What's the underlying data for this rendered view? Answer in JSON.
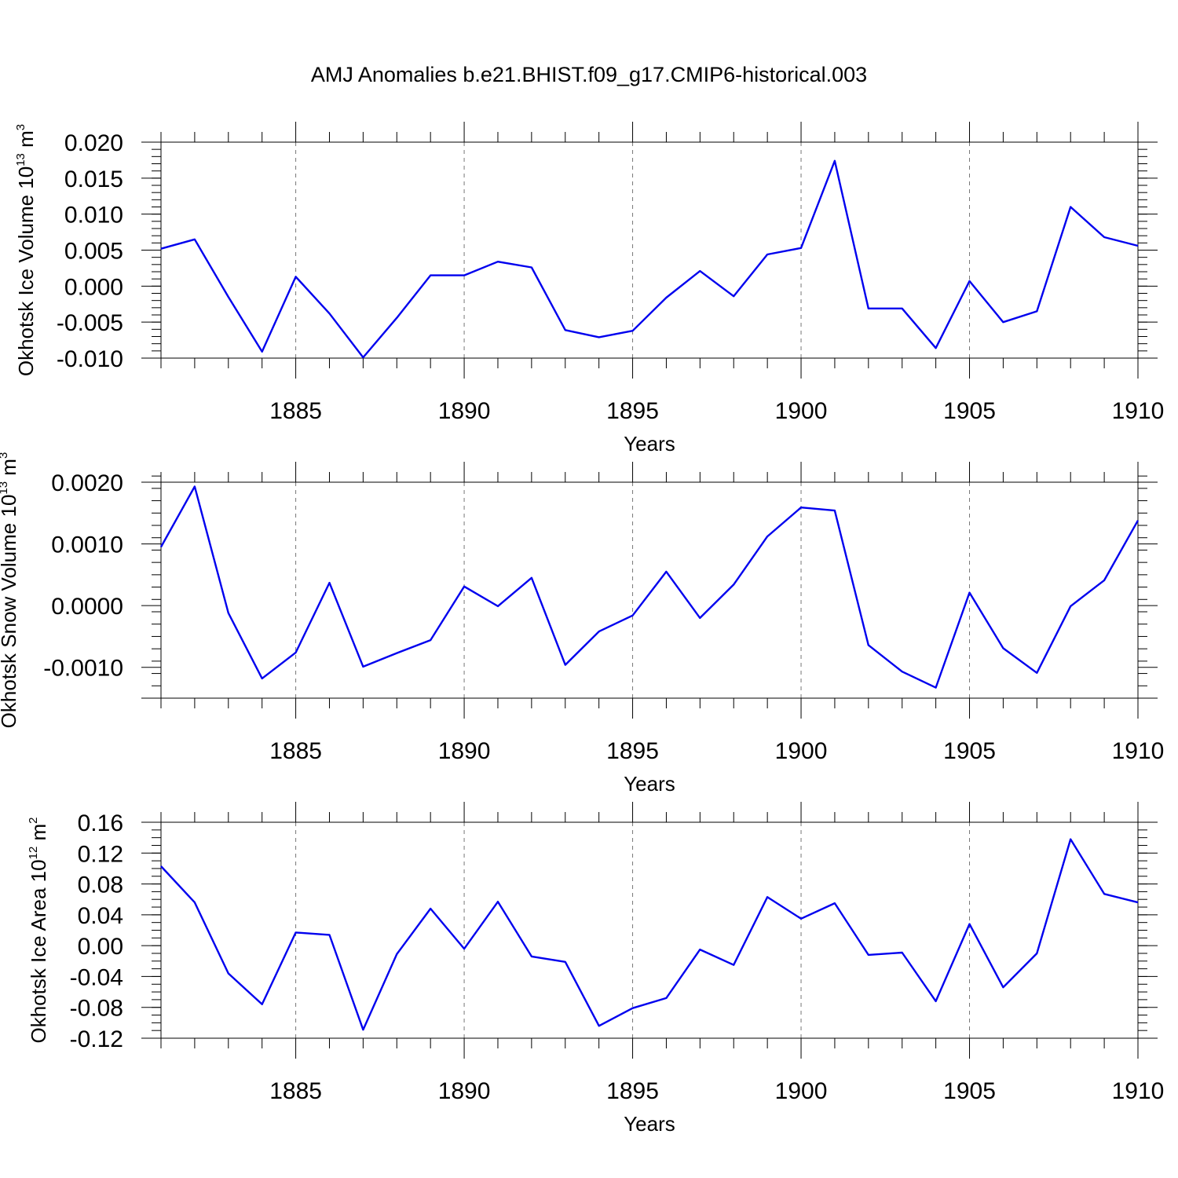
{
  "title": "AMJ Anomalies b.e21.BHIST.f09_g17.CMIP6-historical.003",
  "line_color": "#0000ee",
  "chart_data": [
    {
      "type": "line",
      "title": "AMJ Anomalies b.e21.BHIST.f09_g17.CMIP6-historical.003",
      "xlabel": "Years",
      "ylabel": {
        "text": "Okhotsk Ice Volume 10",
        "exp": "13",
        "unit": " m",
        "unit_exp": "3"
      },
      "xlim": [
        1881,
        1910
      ],
      "ylim": [
        -0.01,
        0.02
      ],
      "grid": "dashed vertical lines at major x ticks",
      "xticks": [
        1885,
        1890,
        1895,
        1900,
        1905,
        1910
      ],
      "xtick_labels": [
        "1885",
        "1890",
        "1895",
        "1900",
        "1905",
        "1910"
      ],
      "yticks": [
        -0.01,
        -0.005,
        0.0,
        0.005,
        0.01,
        0.015,
        0.02
      ],
      "ytick_labels": [
        "-0.010",
        "-0.005",
        "0.000",
        "0.005",
        "0.010",
        "0.015",
        "0.020"
      ],
      "yminor_step": 0.001,
      "series": [
        {
          "name": "Okhotsk Ice Volume",
          "x": [
            1881,
            1882,
            1883,
            1884,
            1885,
            1886,
            1887,
            1888,
            1889,
            1890,
            1891,
            1892,
            1893,
            1894,
            1895,
            1896,
            1897,
            1898,
            1899,
            1900,
            1901,
            1902,
            1903,
            1904,
            1905,
            1906,
            1907,
            1908,
            1909,
            1910
          ],
          "values": [
            0.0052,
            0.0065,
            -0.0015,
            -0.0091,
            0.0013,
            -0.0038,
            -0.0099,
            -0.0044,
            0.0015,
            0.0015,
            0.0034,
            0.0026,
            -0.0061,
            -0.0071,
            -0.0062,
            -0.0016,
            0.0021,
            -0.0014,
            0.0044,
            0.0053,
            0.0174,
            -0.0031,
            -0.0031,
            -0.0086,
            0.0007,
            -0.005,
            -0.0035,
            0.011,
            0.0068,
            0.0056
          ]
        }
      ]
    },
    {
      "type": "line",
      "xlabel": "Years",
      "ylabel": {
        "text": "Okhotsk Snow Volume 10",
        "exp": "13",
        "unit": " m",
        "unit_exp": "3"
      },
      "xlim": [
        1881,
        1910
      ],
      "ylim": [
        -0.0015,
        0.002
      ],
      "grid": "dashed vertical lines at major x ticks",
      "xticks": [
        1885,
        1890,
        1895,
        1900,
        1905,
        1910
      ],
      "xtick_labels": [
        "1885",
        "1890",
        "1895",
        "1900",
        "1905",
        "1910"
      ],
      "yticks": [
        -0.001,
        0.0,
        0.001,
        0.002
      ],
      "ytick_labels": [
        "-0.0010",
        "0.0000",
        "0.0010",
        "0.0020"
      ],
      "yminor_step": 0.0002,
      "series": [
        {
          "name": "Okhotsk Snow Volume",
          "x": [
            1881,
            1882,
            1883,
            1884,
            1885,
            1886,
            1887,
            1888,
            1889,
            1890,
            1891,
            1892,
            1893,
            1894,
            1895,
            1896,
            1897,
            1898,
            1899,
            1900,
            1901,
            1902,
            1903,
            1904,
            1905,
            1906,
            1907,
            1908,
            1909,
            1910
          ],
          "values": [
            0.00095,
            0.00193,
            -0.00012,
            -0.00118,
            -0.00076,
            0.00037,
            -0.00099,
            -0.00077,
            -0.00056,
            0.00031,
            -1e-05,
            0.00045,
            -0.00096,
            -0.00042,
            -0.00016,
            0.00055,
            -0.0002,
            0.00034,
            0.00112,
            0.00159,
            0.00154,
            -0.00064,
            -0.00107,
            -0.00133,
            0.00021,
            -0.00069,
            -0.00109,
            -1e-05,
            0.00041,
            0.00138
          ]
        }
      ]
    },
    {
      "type": "line",
      "xlabel": "Years",
      "ylabel": {
        "text": "Okhotsk Ice Area 10",
        "exp": "12",
        "unit": " m",
        "unit_exp": "2"
      },
      "xlim": [
        1881,
        1910
      ],
      "ylim": [
        -0.12,
        0.16
      ],
      "grid": "dashed vertical lines at major x ticks",
      "xticks": [
        1885,
        1890,
        1895,
        1900,
        1905,
        1910
      ],
      "xtick_labels": [
        "1885",
        "1890",
        "1895",
        "1900",
        "1905",
        "1910"
      ],
      "yticks": [
        -0.12,
        -0.08,
        -0.04,
        0.0,
        0.04,
        0.08,
        0.12,
        0.16
      ],
      "ytick_labels": [
        "-0.12",
        "-0.08",
        "-0.04",
        "0.00",
        "0.04",
        "0.08",
        "0.12",
        "0.16"
      ],
      "yminor_step": 0.01,
      "series": [
        {
          "name": "Okhotsk Ice Area",
          "x": [
            1881,
            1882,
            1883,
            1884,
            1885,
            1886,
            1887,
            1888,
            1889,
            1890,
            1891,
            1892,
            1893,
            1894,
            1895,
            1896,
            1897,
            1898,
            1899,
            1900,
            1901,
            1902,
            1903,
            1904,
            1905,
            1906,
            1907,
            1908,
            1909,
            1910
          ],
          "values": [
            0.103,
            0.056,
            -0.036,
            -0.076,
            0.017,
            0.014,
            -0.109,
            -0.011,
            0.048,
            -0.004,
            0.057,
            -0.014,
            -0.021,
            -0.104,
            -0.081,
            -0.068,
            -0.005,
            -0.025,
            0.063,
            0.035,
            0.055,
            -0.012,
            -0.009,
            -0.072,
            0.028,
            -0.054,
            -0.01,
            0.138,
            0.067,
            0.056
          ]
        }
      ]
    }
  ]
}
